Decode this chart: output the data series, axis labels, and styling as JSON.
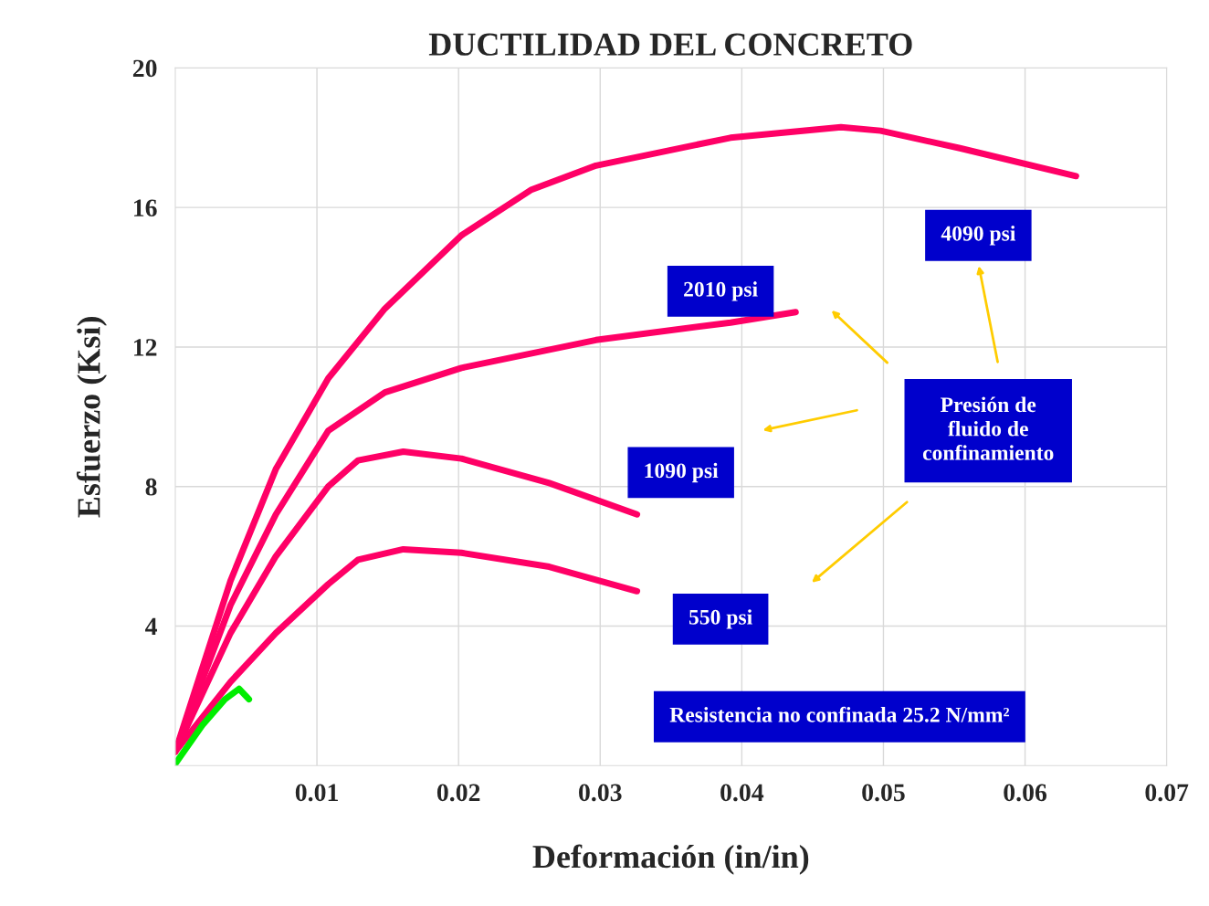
{
  "chart_data": {
    "type": "line",
    "title": "DUCTILIDAD DEL CONCRETO",
    "xlabel": "Deformación (in/in)",
    "ylabel": "Esfuerzo (Ksi)",
    "xlim": [
      0,
      0.07
    ],
    "ylim": [
      0,
      20
    ],
    "xticks": [
      0.01,
      0.02,
      0.03,
      0.04,
      0.05,
      0.06,
      0.07
    ],
    "yticks": [
      4,
      8,
      12,
      16,
      20
    ],
    "grid": true,
    "marker": "none",
    "line_style": "solid",
    "series": [
      {
        "name": "4090 psi",
        "color": "#ff0066",
        "x": [
          0,
          0.0039,
          0.0071,
          0.0108,
          0.0148,
          0.0202,
          0.0251,
          0.0297,
          0.0392,
          0.047,
          0.0498,
          0.0554,
          0.0636
        ],
        "values": [
          0.4,
          5.3,
          8.5,
          11.1,
          13.1,
          15.2,
          16.5,
          17.2,
          18.0,
          18.3,
          18.2,
          17.7,
          16.9
        ]
      },
      {
        "name": "2010 psi",
        "color": "#ff0066",
        "x": [
          0,
          0.0039,
          0.0071,
          0.0108,
          0.0148,
          0.0202,
          0.0297,
          0.0392,
          0.0438
        ],
        "values": [
          0.4,
          4.6,
          7.2,
          9.6,
          10.7,
          11.4,
          12.2,
          12.7,
          13.0
        ]
      },
      {
        "name": "1090 psi",
        "color": "#ff0066",
        "x": [
          0,
          0.0039,
          0.0071,
          0.0108,
          0.0129,
          0.0161,
          0.0202,
          0.0264,
          0.0326
        ],
        "values": [
          0.4,
          3.8,
          6.0,
          8.0,
          8.75,
          9.0,
          8.8,
          8.1,
          7.2
        ]
      },
      {
        "name": "550 psi",
        "color": "#ff0066",
        "x": [
          0,
          0.0039,
          0.0071,
          0.0108,
          0.0129,
          0.0161,
          0.0202,
          0.0264,
          0.0326
        ],
        "values": [
          0.4,
          2.4,
          3.8,
          5.2,
          5.9,
          6.2,
          6.1,
          5.7,
          5.0
        ]
      },
      {
        "color": "#00ee00",
        "x": [
          0,
          0.0019,
          0.0035,
          0.0045,
          0.0052
        ],
        "values": [
          0.05,
          1.15,
          1.9,
          2.2,
          1.9
        ]
      }
    ],
    "annotations": [
      "Presión de\nfluido de\nconfinamiento",
      "Resistencia no confinada 25.2 N/mm²"
    ]
  }
}
